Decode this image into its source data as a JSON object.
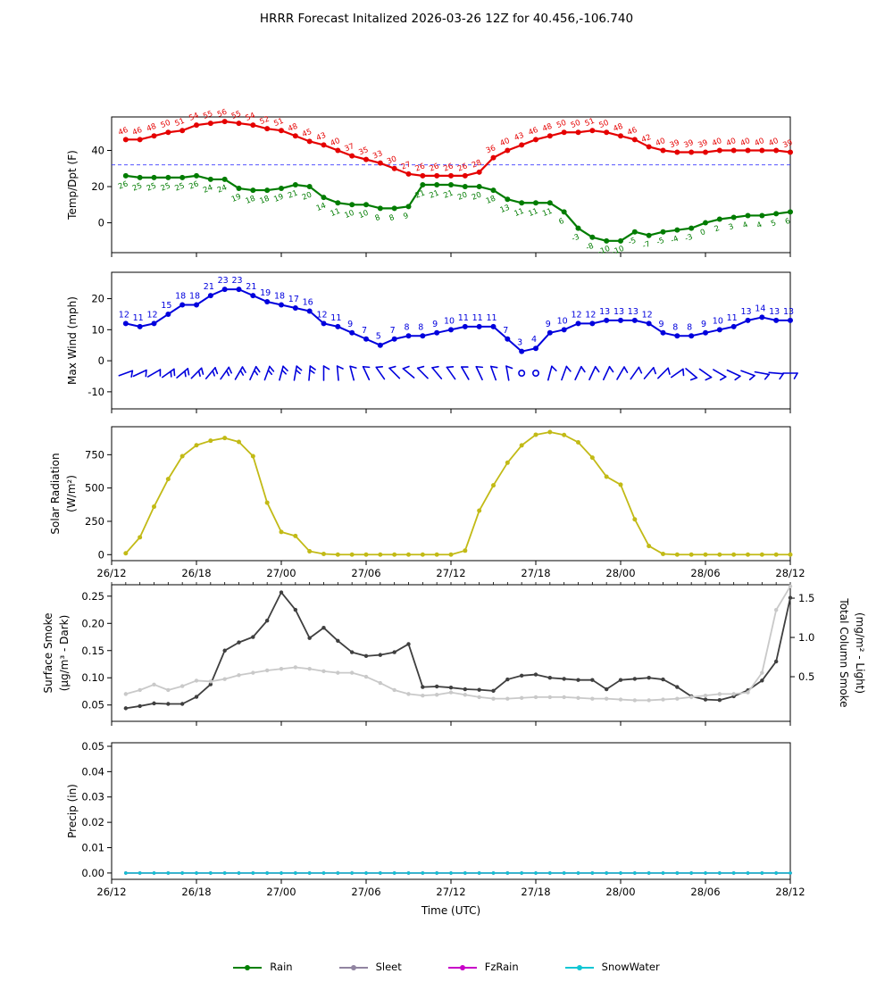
{
  "title": "HRRR Forecast Initalized 2026-03-26 12Z for 40.456,-106.740",
  "time_axis": {
    "label": "Time (UTC)",
    "tick_labels": [
      "26/12",
      "26/18",
      "27/00",
      "27/06",
      "27/12",
      "27/18",
      "28/00",
      "28/06",
      "28/12"
    ],
    "hours_span": 48,
    "first_point_hour": 1
  },
  "chart_data": [
    {
      "id": "temp",
      "type": "line",
      "ylabel": "Temp/Dpt (F)",
      "yticks": [
        "0",
        "20",
        "40"
      ],
      "freezing_line": 32,
      "freezing_line_color": "#3a3aff",
      "series": [
        {
          "name": "Temperature",
          "color": "#e50000",
          "point_labels": true,
          "label_pos": "above",
          "values": [
            46,
            46,
            48,
            50,
            51,
            54,
            55,
            56,
            55,
            54,
            52,
            51,
            48,
            45,
            43,
            40,
            37,
            35,
            33,
            30,
            27,
            26,
            26,
            26,
            26,
            28,
            36,
            40,
            43,
            46,
            48,
            50,
            50,
            51,
            50,
            48,
            46,
            42,
            40,
            39,
            39,
            39,
            40,
            40,
            40,
            40,
            40,
            39
          ]
        },
        {
          "name": "Dewpoint",
          "color": "#007c00",
          "point_labels": true,
          "label_pos": "below",
          "values": [
            26,
            25,
            25,
            25,
            25,
            26,
            24,
            24,
            19,
            18,
            18,
            19,
            21,
            20,
            14,
            11,
            10,
            10,
            8,
            8,
            9,
            21,
            21,
            21,
            20,
            20,
            18,
            13,
            11,
            11,
            11,
            6,
            -3,
            -8,
            -10,
            -10,
            -5,
            -7,
            -5,
            -4,
            -3,
            0,
            2,
            3,
            4,
            4,
            5,
            6
          ]
        }
      ]
    },
    {
      "id": "wind",
      "type": "line",
      "ylabel": "Max Wind (mph)",
      "yticks": [
        "-10",
        "0",
        "10",
        "20"
      ],
      "barb_color": "#0000dd",
      "barb_angles": [
        70,
        65,
        60,
        55,
        50,
        45,
        40,
        35,
        30,
        25,
        20,
        15,
        10,
        5,
        0,
        -5,
        -15,
        -25,
        -35,
        -45,
        -50,
        -45,
        -40,
        -35,
        -30,
        -25,
        -20,
        -10,
        null,
        null,
        15,
        20,
        25,
        25,
        25,
        30,
        35,
        40,
        45,
        55,
        130,
        125,
        120,
        115,
        110,
        100,
        95,
        90
      ],
      "series": [
        {
          "name": "Max Wind",
          "color": "#0000dd",
          "point_labels": true,
          "label_pos": "above",
          "values": [
            12,
            11,
            12,
            15,
            18,
            18,
            21,
            23,
            23,
            21,
            19,
            18,
            17,
            16,
            12,
            11,
            9,
            7,
            5,
            7,
            8,
            8,
            9,
            10,
            11,
            11,
            11,
            7,
            3,
            4,
            9,
            10,
            12,
            12,
            13,
            13,
            13,
            12,
            9,
            8,
            8,
            9,
            10,
            11,
            13,
            14,
            13,
            13
          ]
        }
      ]
    },
    {
      "id": "solar",
      "type": "line",
      "ylabel": [
        "Solar Radiation",
        "(W/m²)"
      ],
      "yticks": [
        "0",
        "250",
        "500",
        "750"
      ],
      "show_x_labels": true,
      "series": [
        {
          "name": "Solar Radiation",
          "color": "#c2ba16",
          "values": [
            10,
            130,
            360,
            567,
            739,
            821,
            855,
            875,
            846,
            739,
            390,
            170,
            140,
            25,
            5,
            0,
            0,
            0,
            0,
            0,
            0,
            0,
            0,
            0,
            30,
            330,
            520,
            690,
            820,
            900,
            920,
            898,
            843,
            728,
            585,
            525,
            265,
            65,
            5,
            0,
            0,
            0,
            0,
            0,
            0,
            0,
            0,
            0
          ]
        }
      ]
    },
    {
      "id": "smoke",
      "type": "line",
      "ylabel": [
        "Surface Smoke",
        "(μg/m³ - Dark)"
      ],
      "ylabel_right": [
        "Total Column Smoke",
        "(mg/m² - Light)"
      ],
      "yticks": [
        "0.05",
        "0.10",
        "0.15",
        "0.20",
        "0.25"
      ],
      "yticks_right": [
        "0.5",
        "1.0",
        "1.5"
      ],
      "top_minor_ticks": true,
      "series": [
        {
          "name": "Surface Smoke",
          "color": "#3f3f3f",
          "values": [
            0.044,
            0.048,
            0.053,
            0.052,
            0.052,
            0.065,
            0.088,
            0.15,
            0.165,
            0.175,
            0.205,
            0.257,
            0.225,
            0.173,
            0.192,
            0.168,
            0.147,
            0.14,
            0.142,
            0.147,
            0.162,
            0.083,
            0.084,
            0.082,
            0.079,
            0.078,
            0.076,
            0.097,
            0.104,
            0.106,
            0.1,
            0.098,
            0.096,
            0.096,
            0.079,
            0.096,
            0.098,
            0.1,
            0.097,
            0.083,
            0.066,
            0.06,
            0.059,
            0.066,
            0.077,
            0.095,
            0.13,
            0.247
          ]
        },
        {
          "name": "Total Column Smoke",
          "color": "#c9c9c9",
          "axis": "right",
          "values": [
            0.28,
            0.33,
            0.4,
            0.33,
            0.38,
            0.45,
            0.44,
            0.47,
            0.52,
            0.55,
            0.58,
            0.6,
            0.62,
            0.6,
            0.57,
            0.55,
            0.55,
            0.5,
            0.42,
            0.33,
            0.28,
            0.26,
            0.27,
            0.3,
            0.27,
            0.24,
            0.22,
            0.22,
            0.23,
            0.24,
            0.24,
            0.24,
            0.23,
            0.22,
            0.22,
            0.21,
            0.2,
            0.2,
            0.21,
            0.22,
            0.24,
            0.26,
            0.28,
            0.28,
            0.3,
            0.55,
            1.35,
            1.65
          ]
        }
      ]
    },
    {
      "id": "precip",
      "type": "line",
      "ylabel": "Precip (in)",
      "yticks": [
        "0.00",
        "0.01",
        "0.02",
        "0.03",
        "0.04",
        "0.05"
      ],
      "show_x_labels": true,
      "series": [
        {
          "name": "Rain",
          "color": "#008000",
          "constant": 0
        },
        {
          "name": "Sleet",
          "color": "#9184a1",
          "constant": 0
        },
        {
          "name": "FzRain",
          "color": "#c800c8",
          "constant": 0
        },
        {
          "name": "SnowWater",
          "color": "#0fc6d4",
          "constant": 0
        }
      ]
    }
  ],
  "legend": {
    "items": [
      {
        "label": "Rain",
        "color": "#008000"
      },
      {
        "label": "Sleet",
        "color": "#9184a1"
      },
      {
        "label": "FzRain",
        "color": "#c800c8"
      },
      {
        "label": "SnowWater",
        "color": "#0fc6d4"
      }
    ]
  }
}
